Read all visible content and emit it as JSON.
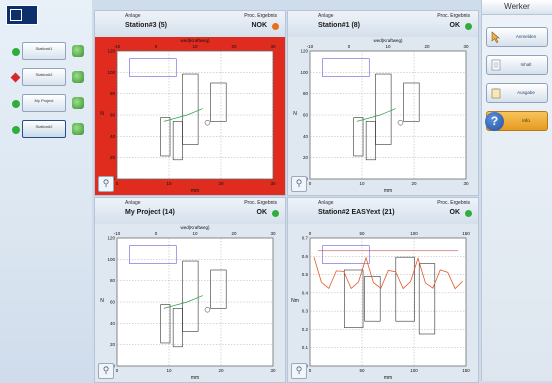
{
  "sidebar": {
    "stations": [
      {
        "label": "Station#1",
        "status": "ok",
        "active": false
      },
      {
        "label": "Station#2",
        "status": "nok",
        "active": false
      },
      {
        "label": "My Project",
        "status": "ok",
        "active": false
      },
      {
        "label": "Station#2",
        "status": "ok",
        "active": true
      }
    ]
  },
  "panels": [
    {
      "label": "Anlage",
      "name": "Station#3 (5)",
      "result_label": "Proc. Ergebnis",
      "result": "NOK",
      "dot_color": "#e8701a",
      "nok": true,
      "chart": {
        "title": "wed(Kraftweg)",
        "ylabel": "N",
        "xlabel": "mm",
        "xticks": [
          "0",
          "10",
          "20",
          "30"
        ],
        "yticks": [
          "0",
          "20",
          "40",
          "60",
          "80",
          "100",
          "120"
        ],
        "top_ticks": [
          "-10",
          "0",
          "10",
          "20",
          "30"
        ]
      }
    },
    {
      "label": "Anlage",
      "name": "Station#1 (8)",
      "result_label": "Proc. Ergebnis",
      "result": "OK",
      "dot_color": "#2fae3b",
      "nok": false,
      "chart": {
        "title": "wed(Kraftweg)",
        "ylabel": "N",
        "xlabel": "mm",
        "xticks": [
          "0",
          "10",
          "20",
          "30"
        ],
        "yticks": [
          "0",
          "20",
          "40",
          "60",
          "80",
          "100",
          "120"
        ],
        "top_ticks": [
          "-10",
          "0",
          "10",
          "20",
          "30"
        ]
      }
    },
    {
      "label": "Anlage",
      "name": "My Project (14)",
      "result_label": "Proc. Ergebnis",
      "result": "OK",
      "dot_color": "#2fae3b",
      "nok": false,
      "chart": {
        "title": "wed(Kraftweg)",
        "ylabel": "N",
        "xlabel": "mm",
        "xticks": [
          "0",
          "10",
          "20",
          "30"
        ],
        "yticks": [
          "0",
          "20",
          "40",
          "60",
          "80",
          "100",
          "120"
        ],
        "top_ticks": [
          "-10",
          "0",
          "10",
          "20",
          "30"
        ]
      }
    },
    {
      "label": "Anlage",
      "name": "Station#2 EASYext (21)",
      "result_label": "Proc. Ergebnis",
      "result": "OK",
      "dot_color": "#2fae3b",
      "nok": false,
      "chart": {
        "title": "",
        "ylabel": "Nm",
        "xlabel": "mm",
        "xticks": [
          "0",
          "50",
          "100",
          "150"
        ],
        "yticks": [
          "0",
          "0.1",
          "0.2",
          "0.3",
          "0.4",
          "0.5",
          "0.6",
          "0.7"
        ],
        "top_ticks": [
          "0",
          "50",
          "100",
          "150"
        ]
      }
    }
  ],
  "werker": {
    "title": "Werker",
    "buttons": [
      {
        "label": "Anmelden",
        "icon": "pointer-icon"
      },
      {
        "label": "Inhalt",
        "icon": "document-icon"
      },
      {
        "label": "Ausgabe",
        "icon": "notes-icon"
      },
      {
        "label": "Info",
        "icon": "help-icon"
      }
    ]
  }
}
